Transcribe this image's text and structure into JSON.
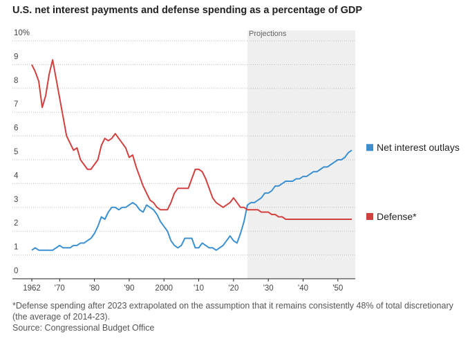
{
  "chart_data": {
    "type": "line",
    "title": "U.S. net interest payments and defense spending as a percentage of GDP",
    "annotation": "Projections",
    "projection_start": 2024,
    "footnote": "*Defense spending after 2023 extrapolated on the assumption that it remains consistently 48% of total discretionary (the average of 2014-23).",
    "source": "Source: Congressional Budget Office",
    "legend": "right",
    "grid": true,
    "x": [
      1962,
      1963,
      1964,
      1965,
      1966,
      1967,
      1968,
      1969,
      1970,
      1971,
      1972,
      1973,
      1974,
      1975,
      1976,
      1977,
      1978,
      1979,
      1980,
      1981,
      1982,
      1983,
      1984,
      1985,
      1986,
      1987,
      1988,
      1989,
      1990,
      1991,
      1992,
      1993,
      1994,
      1995,
      1996,
      1997,
      1998,
      1999,
      2000,
      2001,
      2002,
      2003,
      2004,
      2005,
      2006,
      2007,
      2008,
      2009,
      2010,
      2011,
      2012,
      2013,
      2014,
      2015,
      2016,
      2017,
      2018,
      2019,
      2020,
      2021,
      2022,
      2023,
      2024,
      2025,
      2026,
      2027,
      2028,
      2029,
      2030,
      2031,
      2032,
      2033,
      2034,
      2035,
      2036,
      2037,
      2038,
      2039,
      2040,
      2041,
      2042,
      2043,
      2044,
      2045,
      2046,
      2047,
      2048,
      2049,
      2050,
      2051,
      2052,
      2053,
      2054
    ],
    "series": [
      {
        "name": "Net interest outlays",
        "color": "#3a8fd1",
        "values": [
          1.2,
          1.3,
          1.2,
          1.2,
          1.2,
          1.2,
          1.2,
          1.3,
          1.4,
          1.3,
          1.3,
          1.3,
          1.4,
          1.4,
          1.5,
          1.5,
          1.6,
          1.7,
          1.9,
          2.2,
          2.6,
          2.5,
          2.8,
          3.0,
          3.0,
          2.9,
          3.0,
          3.0,
          3.1,
          3.2,
          3.1,
          2.9,
          2.8,
          3.1,
          3.0,
          2.9,
          2.7,
          2.4,
          2.2,
          2.0,
          1.6,
          1.4,
          1.3,
          1.4,
          1.7,
          1.7,
          1.7,
          1.3,
          1.3,
          1.5,
          1.4,
          1.3,
          1.3,
          1.2,
          1.3,
          1.4,
          1.6,
          1.8,
          1.6,
          1.5,
          1.9,
          2.4,
          3.1,
          3.2,
          3.2,
          3.3,
          3.4,
          3.6,
          3.6,
          3.7,
          3.9,
          3.9,
          4.0,
          4.1,
          4.1,
          4.1,
          4.2,
          4.2,
          4.3,
          4.3,
          4.4,
          4.5,
          4.5,
          4.6,
          4.7,
          4.7,
          4.8,
          4.9,
          5.0,
          5.0,
          5.1,
          5.3,
          5.4
        ]
      },
      {
        "name": "Defense*",
        "color": "#d13f3f",
        "values": [
          9.0,
          8.7,
          8.3,
          7.2,
          7.7,
          8.6,
          9.2,
          8.4,
          7.6,
          6.8,
          6.0,
          5.7,
          5.4,
          5.5,
          5.0,
          4.8,
          4.6,
          4.6,
          4.8,
          5.0,
          5.6,
          5.9,
          5.8,
          5.9,
          6.1,
          5.9,
          5.7,
          5.5,
          5.1,
          5.2,
          4.7,
          4.3,
          3.9,
          3.6,
          3.3,
          3.2,
          3.0,
          2.9,
          2.9,
          2.9,
          3.2,
          3.6,
          3.8,
          3.8,
          3.8,
          3.8,
          4.2,
          4.6,
          4.6,
          4.5,
          4.2,
          3.8,
          3.4,
          3.2,
          3.1,
          3.0,
          3.1,
          3.2,
          3.4,
          3.2,
          3.0,
          3.0,
          2.9,
          2.9,
          2.9,
          2.9,
          2.8,
          2.8,
          2.8,
          2.7,
          2.7,
          2.6,
          2.6,
          2.5,
          2.5,
          2.5,
          2.5,
          2.5,
          2.5,
          2.5,
          2.5,
          2.5,
          2.5,
          2.5,
          2.5,
          2.5,
          2.5,
          2.5,
          2.5,
          2.5,
          2.5,
          2.5,
          2.5
        ]
      }
    ],
    "xlim": [
      1962,
      2055
    ],
    "xticks": [
      1962,
      {
        "value": 1970,
        "label": "'70"
      },
      {
        "value": 1980,
        "label": "'80"
      },
      {
        "value": 1990,
        "label": "'90"
      },
      2000,
      {
        "value": 2010,
        "label": "'10"
      },
      {
        "value": 2020,
        "label": "'20"
      },
      {
        "value": 2030,
        "label": "'30"
      },
      {
        "value": 2040,
        "label": "'40"
      },
      {
        "value": 2050,
        "label": "'50"
      }
    ],
    "ylim": [
      0,
      10
    ],
    "yticks": [
      0,
      1,
      2,
      3,
      4,
      5,
      6,
      7,
      8,
      9,
      {
        "value": 10,
        "label": "10%"
      }
    ]
  }
}
